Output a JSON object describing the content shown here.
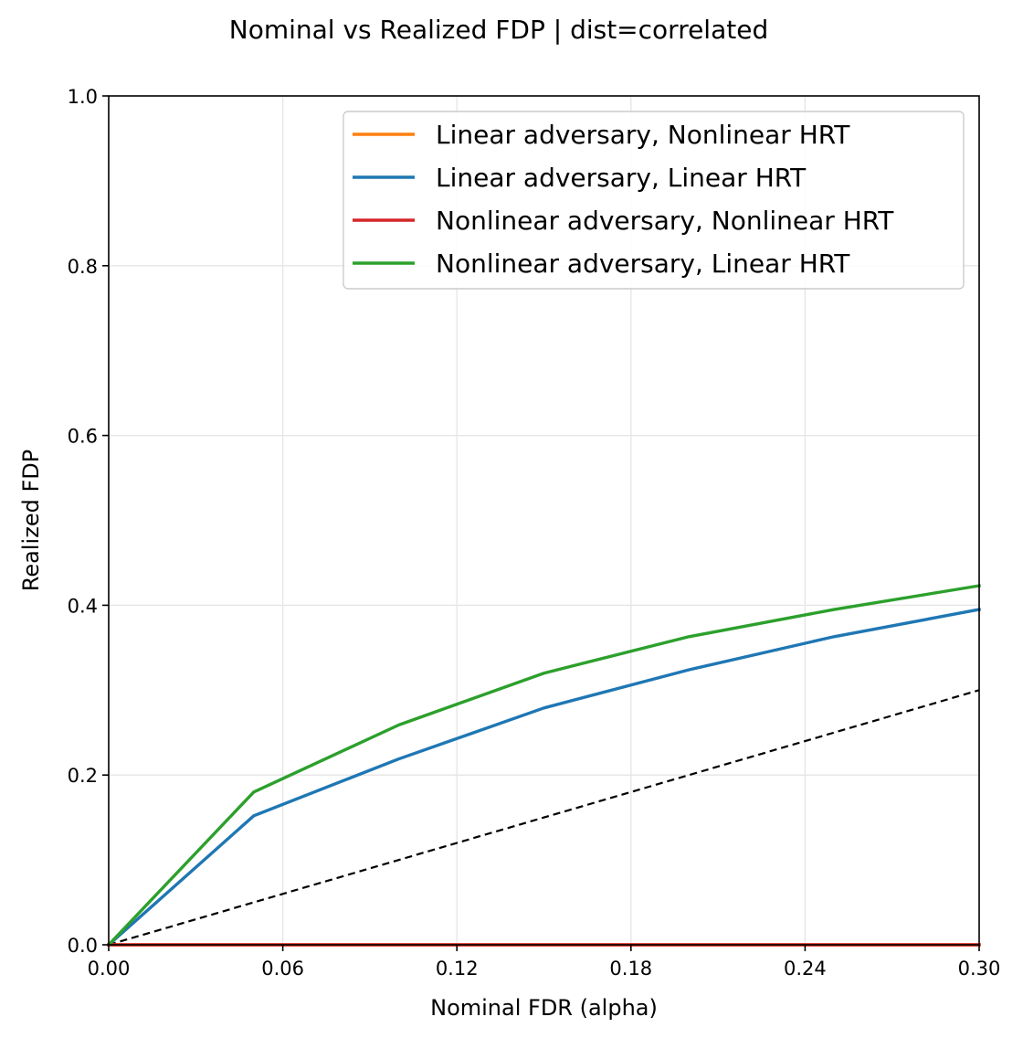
{
  "chart_data": {
    "type": "line",
    "title": "Nominal vs Realized FDP | dist=correlated",
    "xlabel": "Nominal FDR (alpha)",
    "ylabel": "Realized FDP",
    "xlim": [
      0.0,
      0.3
    ],
    "ylim": [
      0.0,
      1.0
    ],
    "x_ticks": [
      0.0,
      0.06,
      0.12,
      0.18,
      0.24,
      0.3
    ],
    "x_tick_labels": [
      "0.00",
      "0.06",
      "0.12",
      "0.18",
      "0.24",
      "0.30"
    ],
    "y_ticks": [
      0.0,
      0.2,
      0.4,
      0.6,
      0.8,
      1.0
    ],
    "y_tick_labels": [
      "0.0",
      "0.2",
      "0.4",
      "0.6",
      "0.8",
      "1.0"
    ],
    "grid": true,
    "legend_position": "top-right",
    "x": [
      0.0,
      0.05,
      0.1,
      0.15,
      0.2,
      0.25,
      0.3
    ],
    "series": [
      {
        "name": "Linear adversary, Nonlinear HRT",
        "color": "#ff7f0e",
        "values": [
          0.0,
          0.0,
          0.0,
          0.0,
          0.0,
          0.0,
          0.0
        ]
      },
      {
        "name": "Linear adversary, Linear HRT",
        "color": "#1f77b4",
        "values": [
          0.0,
          0.152,
          0.219,
          0.279,
          0.324,
          0.363,
          0.395
        ]
      },
      {
        "name": "Nonlinear adversary, Nonlinear HRT",
        "color": "#d62728",
        "values": [
          0.0,
          0.0,
          0.0,
          0.0,
          0.0,
          0.0,
          0.0
        ]
      },
      {
        "name": "Nonlinear adversary, Linear HRT",
        "color": "#2ca02c",
        "values": [
          0.0,
          0.18,
          0.259,
          0.32,
          0.363,
          0.395,
          0.423
        ]
      }
    ],
    "reference_line": {
      "color": "#000000",
      "style": "dashed",
      "x": [
        0.0,
        0.3
      ],
      "values": [
        0.0,
        0.3
      ]
    }
  }
}
